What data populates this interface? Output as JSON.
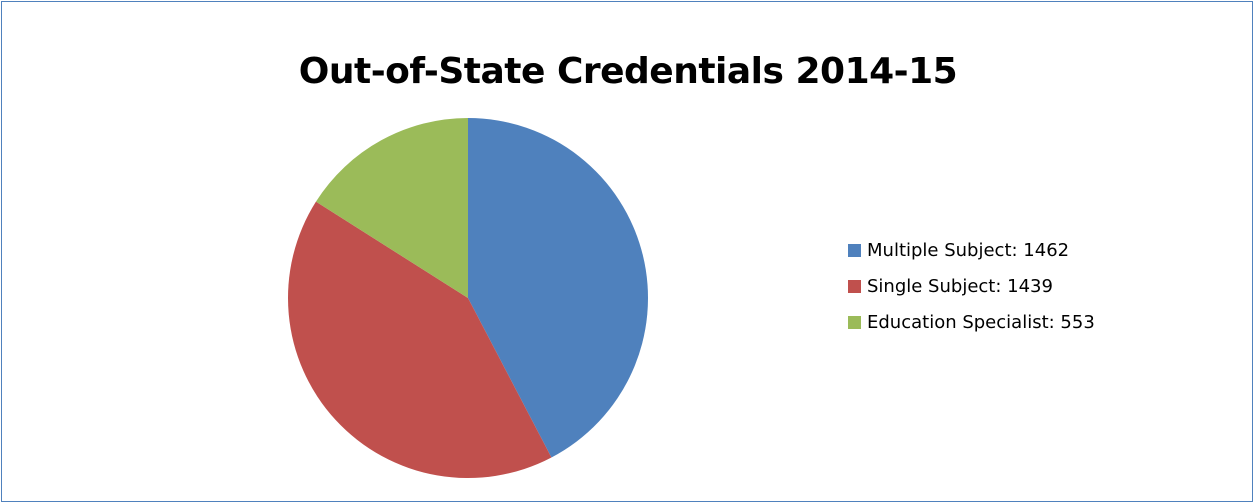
{
  "chart_data": {
    "type": "pie",
    "title": "Out-of-State Credentials 2014-15",
    "legend_position": "right",
    "slices": [
      {
        "name": "Multiple Subject",
        "value": 1462,
        "color": "#4f81bd",
        "legend_label": "Multiple Subject: 1462"
      },
      {
        "name": "Single Subject",
        "value": 1439,
        "color": "#c0504d",
        "legend_label": "Single Subject: 1439"
      },
      {
        "name": "Education Specialist",
        "value": 553,
        "color": "#9bbb59",
        "legend_label": "Education Specialist: 553"
      }
    ]
  }
}
